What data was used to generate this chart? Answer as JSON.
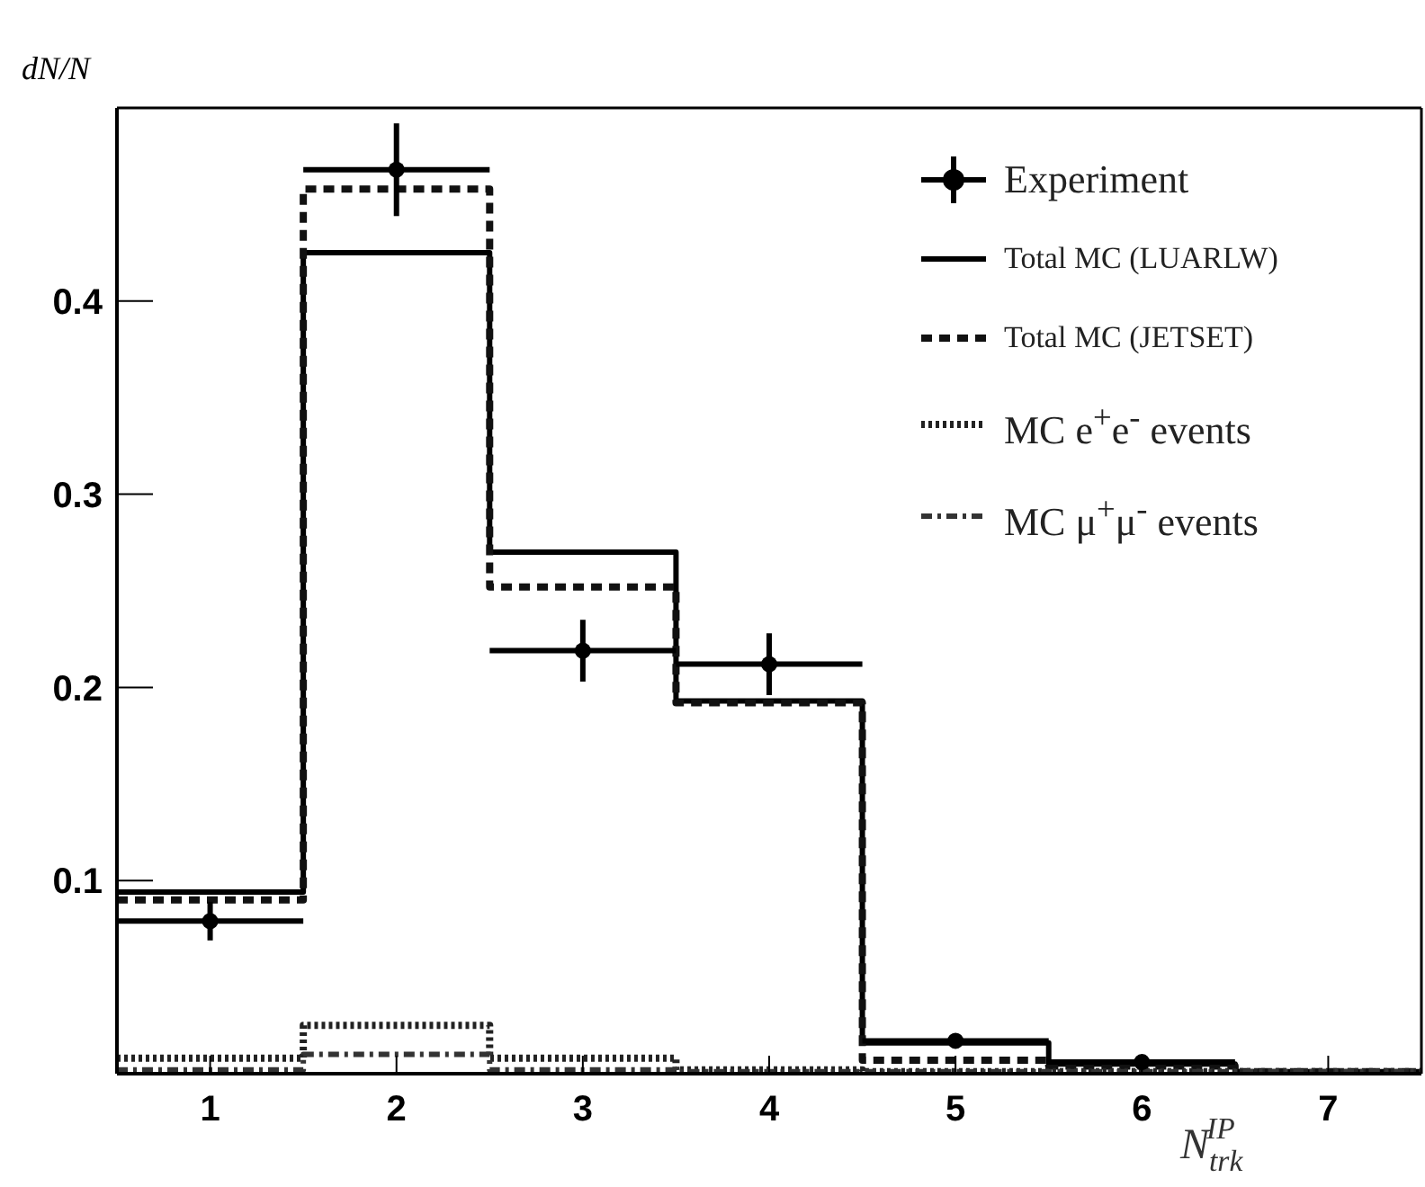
{
  "chart_data": {
    "type": "histogram",
    "xlabel": "N$_{trk}$$^{IP}$",
    "ylabel": "dN/N",
    "bins": [
      0.5,
      1.5,
      2.5,
      3.5,
      4.5,
      5.5,
      6.5,
      7.5
    ],
    "xlim": [
      0.5,
      7.5
    ],
    "xticks": [
      1,
      2,
      3,
      4,
      5,
      6,
      7
    ],
    "ylim": [
      0,
      0.5
    ],
    "yticks": [
      0.1,
      0.2,
      0.3,
      0.4
    ],
    "legend": "top right",
    "grid": false,
    "series": [
      {
        "name": "Experiment",
        "type": "scatter",
        "color": "#000000",
        "marker": "circle",
        "x": [
          1,
          2,
          3,
          4,
          5,
          6
        ],
        "values": [
          0.079,
          0.468,
          0.219,
          0.212,
          0.017,
          0.006
        ],
        "errors": [
          0.01,
          0.024,
          0.016,
          0.016,
          null,
          null
        ],
        "xerrors": [
          0.5,
          0.5,
          0.5,
          0.5,
          0.5,
          0.5
        ]
      },
      {
        "name": "Total MC (LUARLW)",
        "color": "#000000",
        "line_style": "solid",
        "values": [
          0.094,
          0.425,
          0.27,
          0.193,
          0.016,
          0.005,
          0.001
        ]
      },
      {
        "name": "Total MC (JETSET)",
        "color": "#111111",
        "line_style": "dashed",
        "values": [
          0.09,
          0.458,
          0.252,
          0.192,
          0.007,
          0.004,
          0.001
        ]
      },
      {
        "name": "MC e$^{+}$e$^{-}$ events",
        "color": "#222222",
        "line_style": "dotted",
        "values": [
          0.008,
          0.025,
          0.008,
          0.002,
          0.001,
          0.001,
          0.001
        ]
      },
      {
        "name": "MC μ$^{+}$μ$^{-}$ events",
        "color": "#333333",
        "line_style": "dashdot",
        "values": [
          0.002,
          0.01,
          0.002,
          0.001,
          0.001,
          0.001,
          0.001
        ]
      }
    ]
  }
}
